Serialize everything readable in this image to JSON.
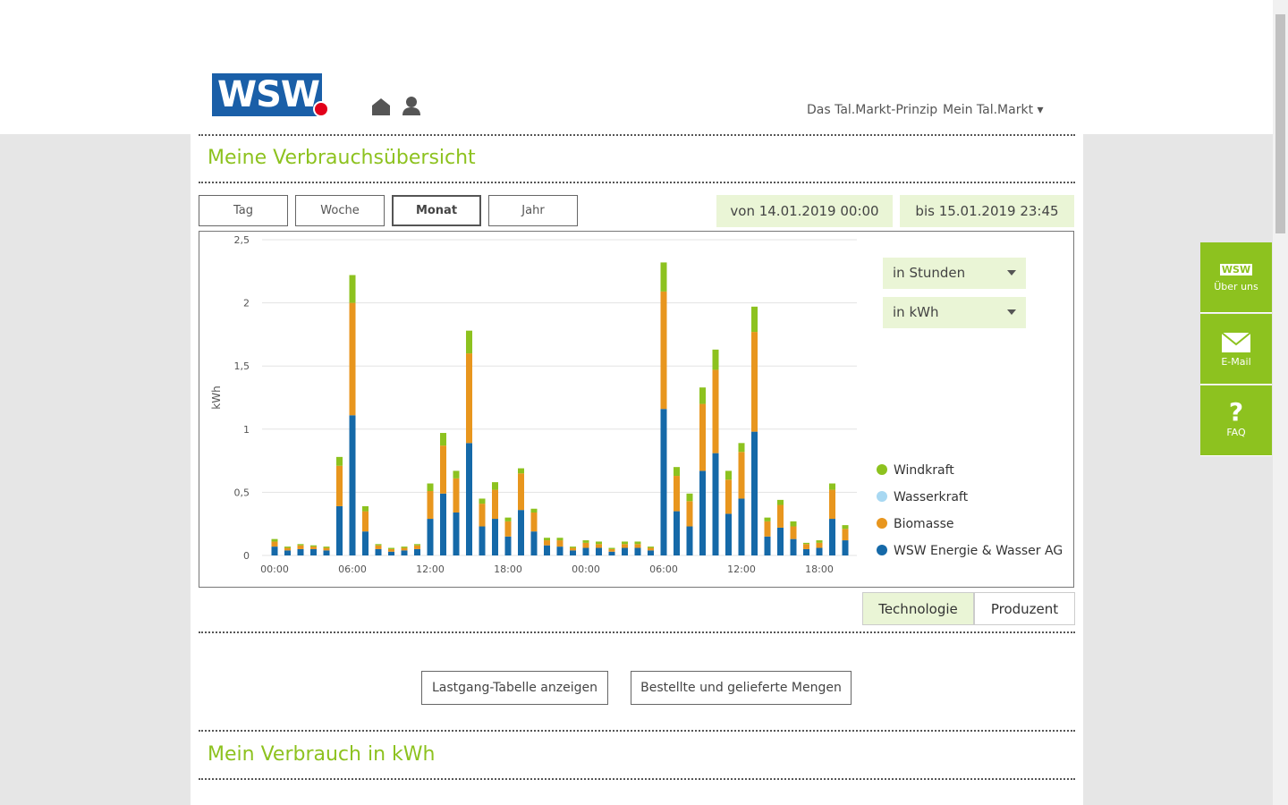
{
  "header": {
    "logo": "WSW",
    "nav": [
      "Das Tal.Markt-Prinzip",
      "Mein Tal.Markt"
    ]
  },
  "overview": {
    "title": "Meine Verbrauchsübersicht",
    "tabs": [
      "Tag",
      "Woche",
      "Monat",
      "Jahr"
    ],
    "active_tab": 2,
    "from": "von 14.01.2019 00:00",
    "to": "bis 15.01.2019 23:45",
    "selects": [
      "in Stunden",
      "in kWh"
    ],
    "toggle": [
      "Technologie",
      "Produzent"
    ],
    "active_toggle": 0,
    "buttons": [
      "Lastgang-Tabelle anzeigen",
      "Bestellte und gelieferte Mengen"
    ]
  },
  "chart_data": {
    "type": "bar",
    "stacked": true,
    "y_label": "kWh",
    "grid": true,
    "legend": "right",
    "categories": [
      "00:00",
      null,
      null,
      null,
      null,
      null,
      "06:00",
      null,
      null,
      null,
      null,
      null,
      "12:00",
      null,
      null,
      null,
      null,
      null,
      "18:00",
      null,
      null,
      null,
      null,
      null,
      "00:00",
      null,
      null,
      null,
      null,
      null,
      "06:00",
      null,
      null,
      null,
      null,
      null,
      "12:00",
      null,
      null,
      null,
      null,
      null,
      "18:00",
      null,
      null
    ],
    "ylim": [
      0,
      2.5
    ],
    "yticks": [
      0,
      {
        "value": 0.5,
        "label": "0,5"
      },
      1,
      {
        "value": 1.5,
        "label": "1,5"
      },
      2,
      {
        "value": 2.5,
        "label": "2,5"
      }
    ],
    "series": [
      {
        "name": "WSW Energie & Wasser AG",
        "color": "#1569a8",
        "values": [
          0.07,
          0.04,
          0.05,
          0.05,
          0.04,
          0.39,
          1.11,
          0.19,
          0.05,
          0.03,
          0.04,
          0.05,
          0.29,
          0.49,
          0.34,
          0.89,
          0.23,
          0.29,
          0.15,
          0.36,
          0.19,
          0.08,
          0.07,
          0.04,
          0.06,
          0.06,
          0.03,
          0.06,
          0.06,
          0.04,
          1.16,
          0.35,
          0.23,
          0.67,
          0.81,
          0.33,
          0.45,
          0.98,
          0.15,
          0.22,
          0.13,
          0.05,
          0.06,
          0.29,
          0.12
        ]
      },
      {
        "name": "Biomasse",
        "color": "#e8961e",
        "values": [
          0.04,
          0.02,
          0.03,
          0.02,
          0.02,
          0.32,
          0.89,
          0.16,
          0.03,
          0.02,
          0.02,
          0.03,
          0.22,
          0.38,
          0.27,
          0.71,
          0.18,
          0.23,
          0.12,
          0.29,
          0.15,
          0.04,
          0.05,
          0.02,
          0.04,
          0.03,
          0.02,
          0.03,
          0.03,
          0.02,
          0.93,
          0.28,
          0.2,
          0.53,
          0.66,
          0.27,
          0.37,
          0.79,
          0.12,
          0.18,
          0.1,
          0.04,
          0.04,
          0.23,
          0.09
        ]
      },
      {
        "name": "Wasserkraft",
        "color": "#a8d8f2",
        "values": [
          0,
          0,
          0,
          0,
          0,
          0,
          0,
          0,
          0,
          0,
          0,
          0,
          0,
          0,
          0,
          0,
          0,
          0,
          0,
          0,
          0,
          0,
          0,
          0,
          0,
          0,
          0,
          0,
          0,
          0,
          0,
          0,
          0,
          0,
          0,
          0,
          0,
          0,
          0,
          0,
          0,
          0,
          0,
          0,
          0
        ]
      },
      {
        "name": "Windkraft",
        "color": "#8dc21f",
        "values": [
          0.02,
          0.01,
          0.01,
          0.01,
          0.01,
          0.07,
          0.22,
          0.04,
          0.01,
          0.01,
          0.01,
          0.01,
          0.06,
          0.1,
          0.06,
          0.18,
          0.04,
          0.06,
          0.03,
          0.04,
          0.03,
          0.02,
          0.02,
          0.01,
          0.02,
          0.02,
          0.01,
          0.02,
          0.02,
          0.01,
          0.23,
          0.07,
          0.06,
          0.13,
          0.16,
          0.07,
          0.07,
          0.2,
          0.03,
          0.04,
          0.04,
          0.01,
          0.02,
          0.05,
          0.03
        ]
      }
    ]
  },
  "consumption": {
    "title": "Mein Verbrauch in kWh"
  },
  "side": [
    "Über uns",
    "E-Mail",
    "FAQ"
  ],
  "faq_icon": "?"
}
